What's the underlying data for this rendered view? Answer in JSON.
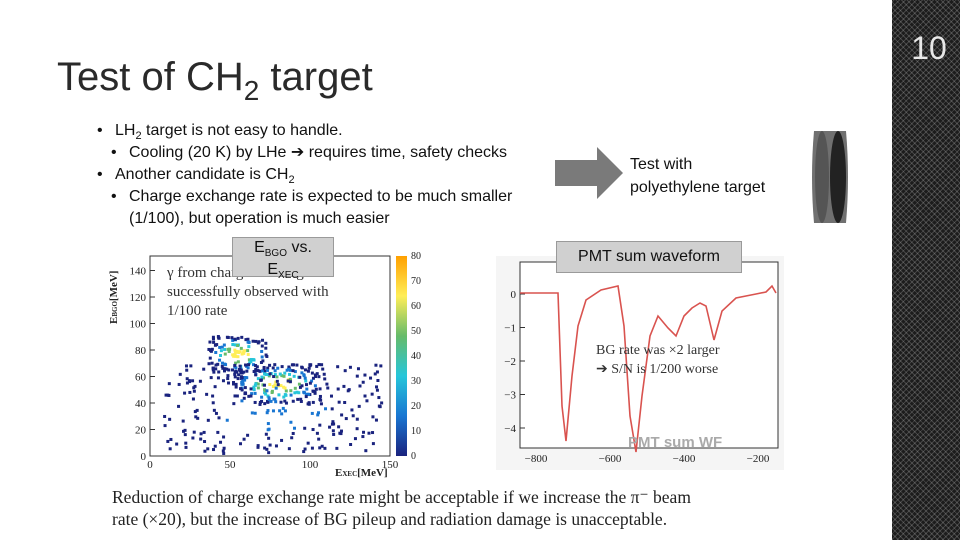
{
  "slide": {
    "number": "10"
  },
  "title": {
    "main": "Test of CH",
    "sub": "2",
    "tail": " target"
  },
  "bullets": {
    "b1": {
      "text": "LH",
      "sub": "2",
      "tail": " target is not easy to handle."
    },
    "b1_1": {
      "text": "Cooling (20 K) by LHe ",
      "arrow": "➔",
      "tail": " requires time, safety checks"
    },
    "b2": {
      "text": "Another candidate is CH",
      "sub": "2"
    },
    "b2_1": {
      "line1": "Charge exchange rate is expected to be much smaller",
      "line2": "(1/100), but operation is much easier"
    }
  },
  "arrow_text": {
    "line1": "Test with",
    "line2": "polyethylene target"
  },
  "ebgo_label": {
    "e1": "E",
    "s1": "BGO",
    "vs": " vs.",
    "e2": "E",
    "s2": "XEC"
  },
  "pmt_label": "PMT sum waveform",
  "scatter_plot": {
    "ylabel": "E",
    "ylabel_sub": "BGO",
    "ylabel_unit": "[MeV]",
    "xlabel": "E",
    "xlabel_sub": "XEC",
    "xlabel_unit": "[MeV]",
    "x_ticks": [
      "0",
      "50",
      "100",
      "150"
    ],
    "y_ticks": [
      "0",
      "20",
      "40",
      "60",
      "80",
      "100",
      "120",
      "140"
    ],
    "colorbar_ticks": [
      "0",
      "10",
      "20",
      "30",
      "40",
      "50",
      "60",
      "70",
      "80"
    ],
    "annotation": {
      "line1": "γ from charge exchange is",
      "line2": "successfully observed with",
      "line3": "1/100 rate"
    }
  },
  "waveform_plot": {
    "x_ticks": [
      "−800",
      "−600",
      "−400",
      "−200"
    ],
    "y_ticks": [
      "0",
      "−1",
      "−2",
      "−3",
      "−4"
    ],
    "note1": "BG rate was ×2 larger",
    "note2": "➔ S/N is 1/200 worse",
    "watermark": "PMT sum WF"
  },
  "conclusion": {
    "line1": "Reduction of charge exchange rate might be acceptable if we increase the π⁻ beam",
    "line2": "rate (×20), but the increase of BG pileup and radiation damage is unacceptable."
  },
  "colors": {
    "accent": "#d9534f",
    "sidebar": "#1c1c1c",
    "arrow": "#7a7a7a",
    "label_box": "#d0d0d0"
  }
}
